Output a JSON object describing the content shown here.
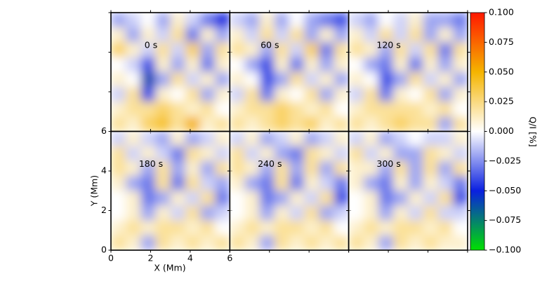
{
  "chart_data": {
    "type": "heatmap",
    "xlabel": "X (Mm)",
    "ylabel": "Y (Mm)",
    "xlim": [
      0,
      6
    ],
    "ylim": [
      0,
      6
    ],
    "xticks": [
      0,
      2,
      4,
      6
    ],
    "yticks": [
      0,
      2,
      4,
      6
    ],
    "colorbar_label": "Q/I [%]",
    "clim": [
      -0.1,
      0.1
    ],
    "colormap": [
      "#00e000",
      "#0a20e0",
      "#ffffff",
      "#f5b400",
      "#ff1800"
    ],
    "cticks": [
      {
        "value": -0.1,
        "label": "−0.100"
      },
      {
        "value": -0.075,
        "label": "−0.075"
      },
      {
        "value": -0.05,
        "label": "−0.050"
      },
      {
        "value": -0.025,
        "label": "−0.025"
      },
      {
        "value": 0,
        "label": "0.000"
      },
      {
        "value": 0.025,
        "label": "0.025"
      },
      {
        "value": 0.05,
        "label": "0.050"
      },
      {
        "value": 0.075,
        "label": "0.075"
      },
      {
        "value": 0.1,
        "label": "0.100"
      }
    ],
    "panels": [
      {
        "label": "0 s",
        "z": [
          [
            -0.02,
            -0.01,
            0.0,
            -0.02,
            0.01,
            -0.01,
            -0.03,
            -0.05
          ],
          [
            0.01,
            -0.02,
            0.01,
            -0.01,
            0.02,
            -0.03,
            0.01,
            -0.02
          ],
          [
            0.03,
            0.01,
            -0.01,
            0.02,
            -0.01,
            0.03,
            -0.02,
            0.02
          ],
          [
            0.0,
            -0.01,
            -0.04,
            0.01,
            -0.02,
            0.01,
            -0.03,
            0.01
          ],
          [
            0.01,
            0.0,
            -0.06,
            -0.02,
            0.02,
            -0.01,
            0.01,
            -0.02
          ],
          [
            -0.01,
            0.02,
            -0.04,
            0.01,
            0.0,
            0.02,
            -0.02,
            0.01
          ],
          [
            0.01,
            0.02,
            0.02,
            0.03,
            0.02,
            0.01,
            0.02,
            0.0
          ],
          [
            0.02,
            0.01,
            0.03,
            0.04,
            0.02,
            0.05,
            0.01,
            0.02
          ]
        ]
      },
      {
        "label": "60 s",
        "z": [
          [
            -0.01,
            -0.02,
            0.01,
            -0.02,
            0.0,
            -0.02,
            -0.03,
            -0.04
          ],
          [
            0.01,
            -0.01,
            0.02,
            -0.01,
            0.02,
            -0.02,
            0.01,
            -0.02
          ],
          [
            0.02,
            0.01,
            -0.02,
            0.02,
            -0.01,
            0.03,
            -0.03,
            0.02
          ],
          [
            0.0,
            -0.02,
            -0.04,
            0.01,
            -0.03,
            0.01,
            -0.02,
            0.01
          ],
          [
            0.01,
            0.0,
            -0.04,
            -0.02,
            0.02,
            -0.01,
            0.01,
            -0.02
          ],
          [
            -0.01,
            0.02,
            -0.03,
            0.01,
            0.0,
            0.02,
            -0.02,
            0.01
          ],
          [
            0.01,
            0.02,
            0.02,
            0.03,
            0.02,
            0.01,
            0.02,
            0.0
          ],
          [
            0.02,
            0.01,
            0.02,
            0.03,
            0.02,
            0.03,
            0.01,
            0.02
          ]
        ]
      },
      {
        "label": "120 s",
        "z": [
          [
            -0.01,
            -0.02,
            0.0,
            -0.01,
            0.01,
            -0.02,
            -0.02,
            -0.03
          ],
          [
            0.01,
            -0.01,
            0.02,
            -0.01,
            0.02,
            -0.02,
            0.01,
            -0.02
          ],
          [
            0.02,
            0.01,
            -0.02,
            0.02,
            -0.01,
            0.02,
            -0.03,
            0.02
          ],
          [
            0.0,
            -0.02,
            -0.03,
            0.01,
            -0.03,
            0.01,
            -0.02,
            0.01
          ],
          [
            0.01,
            0.0,
            -0.04,
            -0.02,
            0.02,
            -0.01,
            0.01,
            -0.02
          ],
          [
            -0.01,
            0.02,
            -0.03,
            0.01,
            0.0,
            0.02,
            -0.02,
            0.01
          ],
          [
            0.01,
            0.02,
            0.02,
            0.02,
            0.02,
            0.01,
            0.02,
            0.0
          ],
          [
            0.02,
            0.01,
            0.02,
            0.03,
            0.02,
            0.02,
            -0.02,
            0.02
          ]
        ]
      },
      {
        "label": "180 s",
        "z": [
          [
            -0.01,
            0.01,
            -0.01,
            -0.02,
            0.01,
            -0.02,
            -0.01,
            0.01
          ],
          [
            0.02,
            -0.01,
            0.01,
            -0.01,
            -0.03,
            0.02,
            0.01,
            -0.01
          ],
          [
            0.02,
            0.01,
            -0.02,
            0.02,
            -0.02,
            0.01,
            -0.02,
            0.02
          ],
          [
            0.01,
            -0.02,
            -0.03,
            0.02,
            -0.03,
            0.02,
            -0.01,
            -0.02
          ],
          [
            0.0,
            0.01,
            -0.03,
            -0.02,
            0.01,
            -0.01,
            0.02,
            -0.03
          ],
          [
            0.0,
            0.01,
            -0.02,
            0.01,
            -0.01,
            0.02,
            -0.02,
            -0.01
          ],
          [
            0.01,
            0.02,
            0.01,
            0.02,
            0.02,
            0.01,
            0.02,
            0.0
          ],
          [
            0.02,
            0.01,
            -0.02,
            0.02,
            0.01,
            0.02,
            0.01,
            0.02
          ]
        ]
      },
      {
        "label": "240 s",
        "z": [
          [
            -0.01,
            0.01,
            -0.02,
            -0.01,
            0.01,
            -0.02,
            -0.01,
            0.01
          ],
          [
            0.02,
            -0.01,
            0.01,
            -0.02,
            -0.03,
            0.02,
            0.01,
            -0.01
          ],
          [
            0.02,
            0.01,
            -0.02,
            0.02,
            -0.02,
            0.02,
            -0.02,
            0.02
          ],
          [
            0.01,
            -0.02,
            -0.03,
            0.02,
            -0.03,
            0.01,
            -0.01,
            -0.03
          ],
          [
            0.0,
            0.01,
            -0.03,
            -0.02,
            0.01,
            -0.01,
            0.02,
            -0.04
          ],
          [
            0.0,
            0.01,
            -0.02,
            0.01,
            -0.01,
            0.02,
            -0.02,
            -0.01
          ],
          [
            0.01,
            0.02,
            0.01,
            0.02,
            0.02,
            0.01,
            0.02,
            0.0
          ],
          [
            0.02,
            0.01,
            -0.02,
            0.02,
            0.01,
            0.02,
            0.01,
            0.02
          ]
        ]
      },
      {
        "label": "300 s",
        "z": [
          [
            -0.01,
            0.01,
            -0.02,
            -0.01,
            0.0,
            -0.01,
            -0.01,
            0.01
          ],
          [
            0.02,
            -0.01,
            0.01,
            -0.02,
            -0.02,
            0.02,
            0.01,
            -0.01
          ],
          [
            0.01,
            0.01,
            -0.02,
            0.02,
            -0.02,
            0.02,
            -0.02,
            0.02
          ],
          [
            0.01,
            -0.02,
            -0.03,
            0.01,
            -0.02,
            0.01,
            -0.01,
            -0.03
          ],
          [
            0.0,
            0.01,
            -0.03,
            -0.02,
            0.01,
            -0.01,
            0.02,
            -0.04
          ],
          [
            0.0,
            0.01,
            -0.02,
            0.01,
            -0.01,
            0.02,
            -0.01,
            -0.01
          ],
          [
            0.01,
            0.02,
            0.01,
            0.02,
            0.02,
            0.01,
            0.02,
            0.0
          ],
          [
            0.02,
            0.01,
            -0.02,
            0.02,
            0.01,
            0.02,
            0.01,
            0.01
          ]
        ]
      }
    ]
  }
}
